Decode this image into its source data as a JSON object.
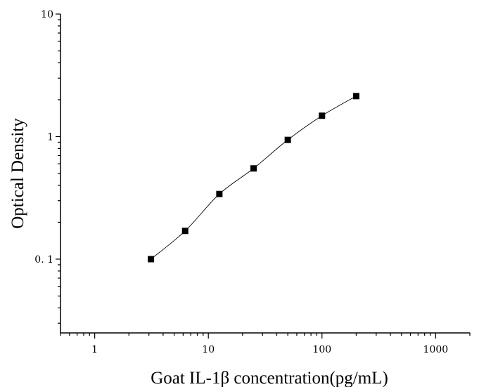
{
  "chart_data": {
    "type": "scatter",
    "title": "",
    "xlabel": "Goat IL-1β concentration(pg/mL)",
    "ylabel": "Optical Density",
    "x_scale": "log",
    "y_scale": "log",
    "xlim": [
      0.5,
      2000
    ],
    "ylim": [
      0.025,
      10
    ],
    "x_ticks": [
      1,
      10,
      100,
      1000
    ],
    "x_tick_labels": [
      "1",
      "10",
      "100",
      "1000"
    ],
    "y_ticks": [
      0.1,
      1,
      10
    ],
    "y_tick_labels": [
      "0. 1",
      "1",
      "10"
    ],
    "grid": false,
    "legend": "none",
    "series": [
      {
        "x": [
          3.125,
          6.25,
          12.5,
          25,
          50,
          100,
          200
        ],
        "y": [
          0.1,
          0.17,
          0.34,
          0.55,
          0.94,
          1.48,
          2.14
        ],
        "marker": "square",
        "color": "#000000",
        "fit_line": true
      }
    ]
  }
}
